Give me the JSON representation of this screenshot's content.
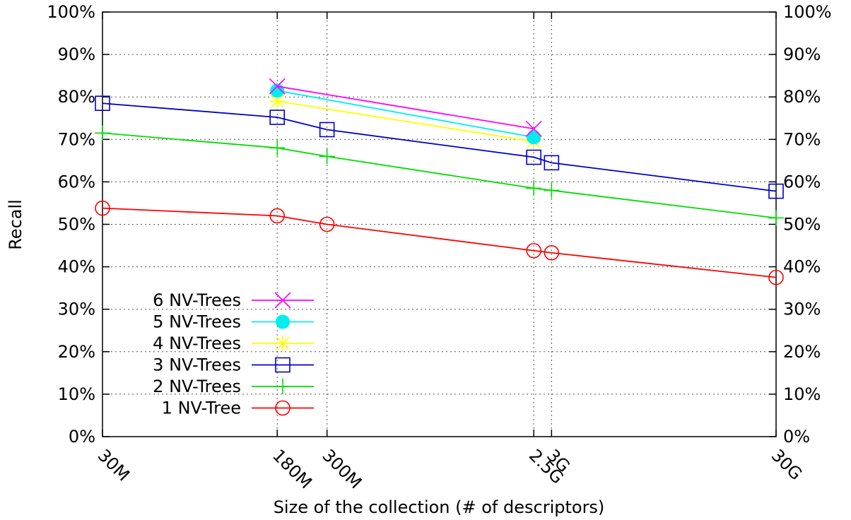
{
  "chart_data": {
    "type": "line",
    "xlabel": "Size of the collection (# of descriptors)",
    "ylabel": "Recall",
    "x_scale": "log",
    "x_ticks": [
      {
        "value": 30000000,
        "label": "30M"
      },
      {
        "value": 180000000,
        "label": "180M"
      },
      {
        "value": 300000000,
        "label": "300M"
      },
      {
        "value": 2500000000,
        "label": "2.5G"
      },
      {
        "value": 3000000000,
        "label": "3G"
      },
      {
        "value": 30000000000,
        "label": "30G"
      }
    ],
    "xlim": [
      30000000,
      30000000000
    ],
    "ylim": [
      0,
      100
    ],
    "y_ticks": [
      0,
      10,
      20,
      30,
      40,
      50,
      60,
      70,
      80,
      90,
      100
    ],
    "y_tick_suffix": "%",
    "grid": true,
    "legend_position": "bottom-left",
    "series": [
      {
        "name": "6 NV-Trees",
        "color": "#ff00ff",
        "marker": "cross",
        "x": [
          180000000,
          2500000000
        ],
        "y": [
          82.5,
          72.5
        ]
      },
      {
        "name": "5 NV-Trees",
        "color": "#00eeee",
        "marker": "filled-circle",
        "x": [
          180000000,
          2500000000
        ],
        "y": [
          81.5,
          70.5
        ]
      },
      {
        "name": "4 NV-Trees",
        "color": "#ffff00",
        "marker": "star",
        "x": [
          180000000,
          2500000000
        ],
        "y": [
          79,
          69.5
        ]
      },
      {
        "name": "3 NV-Trees",
        "color": "#0000cc",
        "marker": "open-square",
        "x": [
          30000000,
          180000000,
          300000000,
          2500000000,
          3000000000,
          30000000000
        ],
        "y": [
          78.5,
          75.2,
          72.3,
          65.8,
          64.5,
          57.8
        ]
      },
      {
        "name": "2 NV-Trees",
        "color": "#00dd00",
        "marker": "plus",
        "x": [
          30000000,
          180000000,
          300000000,
          2500000000,
          3000000000,
          30000000000
        ],
        "y": [
          71.5,
          68,
          66,
          58.5,
          58,
          51.5
        ]
      },
      {
        "name": "1 NV-Tree",
        "color": "#ff0000",
        "marker": "open-circle",
        "x": [
          30000000,
          180000000,
          300000000,
          2500000000,
          3000000000,
          30000000000
        ],
        "y": [
          53.8,
          52,
          50,
          43.8,
          43.3,
          37.5
        ]
      }
    ]
  }
}
